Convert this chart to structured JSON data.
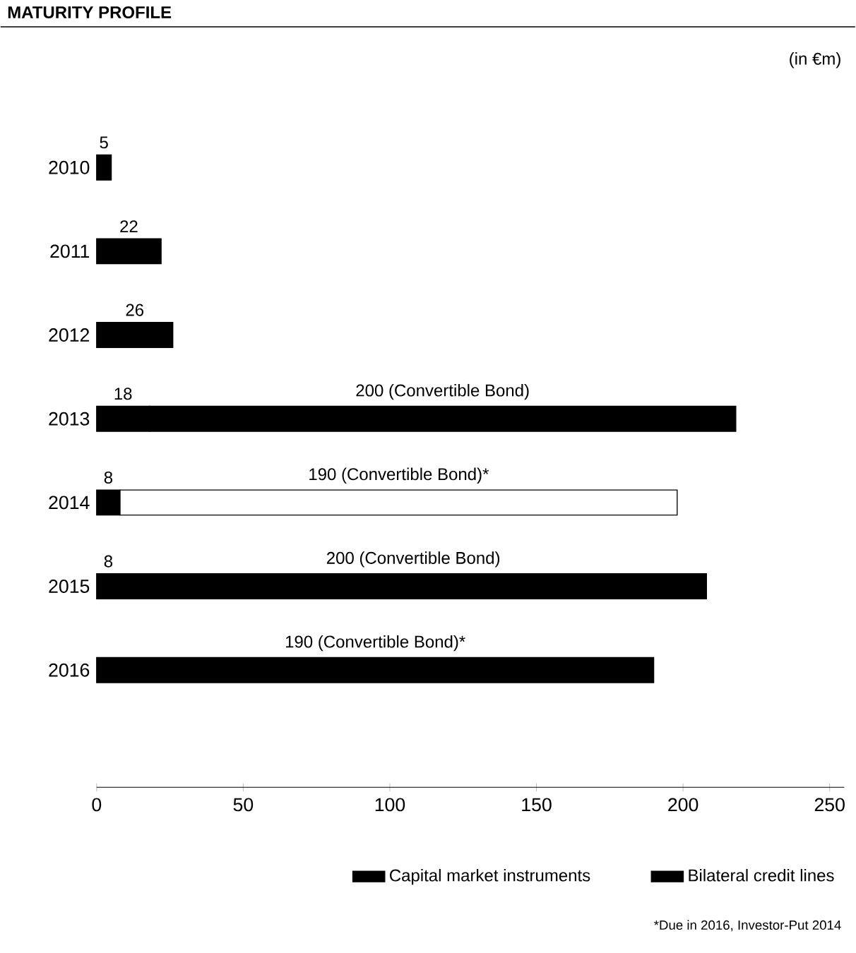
{
  "chart_data": {
    "type": "bar",
    "orientation": "horizontal",
    "stacked": true,
    "title": "MATURITY PROFILE",
    "categories": [
      "2010",
      "2011",
      "2012",
      "2013",
      "2014",
      "2015",
      "2016"
    ],
    "series": [
      {
        "name": "Bilateral credit lines",
        "color": "#000000",
        "values": [
          5,
          22,
          26,
          18,
          8,
          8,
          null
        ],
        "value_labels": [
          "5",
          "22",
          "26",
          "18",
          "8",
          "8",
          null
        ]
      },
      {
        "name": "Capital market instruments",
        "color": "#000000",
        "colors": [
          "#000000",
          "#000000",
          "#000000",
          "#000000",
          "#ffffff",
          "#000000",
          "#000000"
        ],
        "values": [
          null,
          null,
          null,
          200,
          190,
          200,
          190
        ],
        "value_labels": [
          null,
          null,
          null,
          "200 (Convertible Bond)",
          "190 (Convertible Bond)*",
          "200 (Convertible Bond)",
          "190 (Convertible Bond)*"
        ]
      }
    ],
    "xlim": [
      0,
      255
    ],
    "xticks": [
      0,
      50,
      100,
      150,
      200,
      250
    ],
    "legend": "bottom",
    "grid": false,
    "annotations": [
      "(in €m)",
      "*Due in 2016, Investor-Put 2014"
    ]
  }
}
